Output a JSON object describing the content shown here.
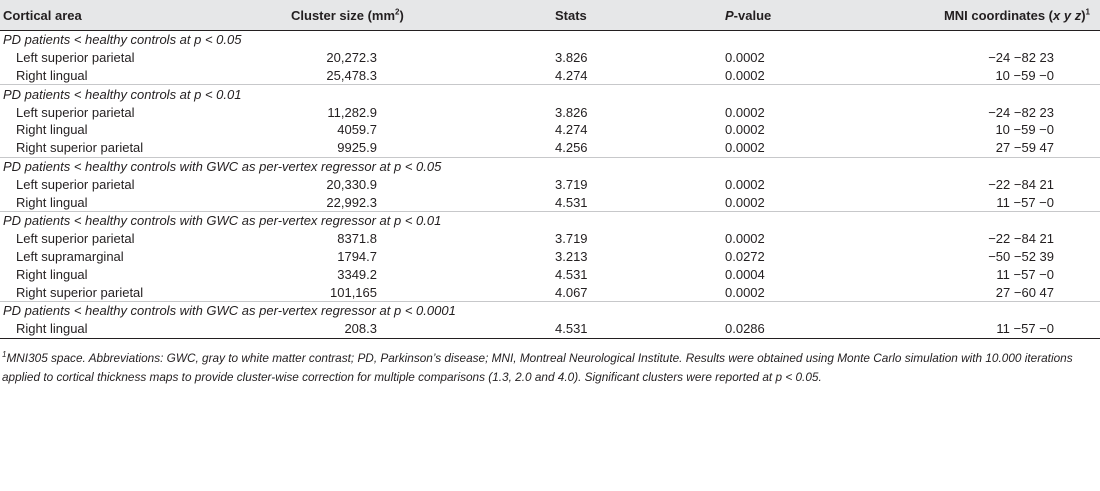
{
  "headers": {
    "area": "Cortical area",
    "size_pre": "Cluster size (mm",
    "size_sup": "2",
    "size_post": ")",
    "stats": "Stats",
    "p_italic": "P",
    "p_rest": "-value",
    "mni_pre": "MNI coordinates (",
    "mni_xyz": "x y z",
    "mni_post": ")",
    "mni_sup": "1"
  },
  "groups": [
    {
      "label": "PD patients < healthy controls at p < 0.05",
      "rows": [
        {
          "area": "Left superior parietal",
          "size": "20,272.3",
          "stats": "3.826",
          "p": "0.0002",
          "mni": "−24 −82 23"
        },
        {
          "area": "Right lingual",
          "size": "25,478.3",
          "stats": "4.274",
          "p": "0.0002",
          "mni": "10 −59 −0"
        }
      ]
    },
    {
      "label": "PD patients < healthy controls at p < 0.01",
      "rows": [
        {
          "area": "Left superior parietal",
          "size": "11,282.9",
          "stats": "3.826",
          "p": "0.0002",
          "mni": "−24 −82 23"
        },
        {
          "area": "Right lingual",
          "size": "4059.7",
          "stats": "4.274",
          "p": "0.0002",
          "mni": "10 −59 −0"
        },
        {
          "area": "Right superior parietal",
          "size": "9925.9",
          "stats": "4.256",
          "p": "0.0002",
          "mni": "27 −59 47"
        }
      ]
    },
    {
      "label": "PD patients < healthy controls with GWC as per-vertex regressor at p < 0.05",
      "rows": [
        {
          "area": "Left superior parietal",
          "size": "20,330.9",
          "stats": "3.719",
          "p": "0.0002",
          "mni": "−22 −84 21"
        },
        {
          "area": "Right lingual",
          "size": "22,992.3",
          "stats": "4.531",
          "p": "0.0002",
          "mni": "11 −57 −0"
        }
      ]
    },
    {
      "label": "PD patients < healthy controls with GWC as per-vertex regressor at p < 0.01",
      "rows": [
        {
          "area": "Left superior parietal",
          "size": "8371.8",
          "stats": "3.719",
          "p": "0.0002",
          "mni": "−22 −84 21"
        },
        {
          "area": "Left supramarginal",
          "size": "1794.7",
          "stats": "3.213",
          "p": "0.0272",
          "mni": "−50 −52 39"
        },
        {
          "area": "Right lingual",
          "size": "3349.2",
          "stats": "4.531",
          "p": "0.0004",
          "mni": "11 −57 −0"
        },
        {
          "area": "Right superior parietal",
          "size": "101,165",
          "stats": "4.067",
          "p": "0.0002",
          "mni": "27 −60 47"
        }
      ]
    },
    {
      "label": "PD patients < healthy controls with GWC as per-vertex regressor at p < 0.0001",
      "rows": [
        {
          "area": "Right lingual",
          "size": "208.3",
          "stats": "4.531",
          "p": "0.0286",
          "mni": "11 −57 −0"
        }
      ]
    }
  ],
  "footnote": {
    "sup": "1",
    "text": "MNI305 space. Abbreviations: GWC, gray to white matter contrast; PD, Parkinson’s disease; MNI, Montreal Neurological Institute. Results were obtained using Monte Carlo simulation with 10.000 iterations applied to cortical thickness maps to provide cluster-wise correction for multiple comparisons (1.3, 2.0 and 4.0). Significant clusters were reported at p < 0.05."
  }
}
